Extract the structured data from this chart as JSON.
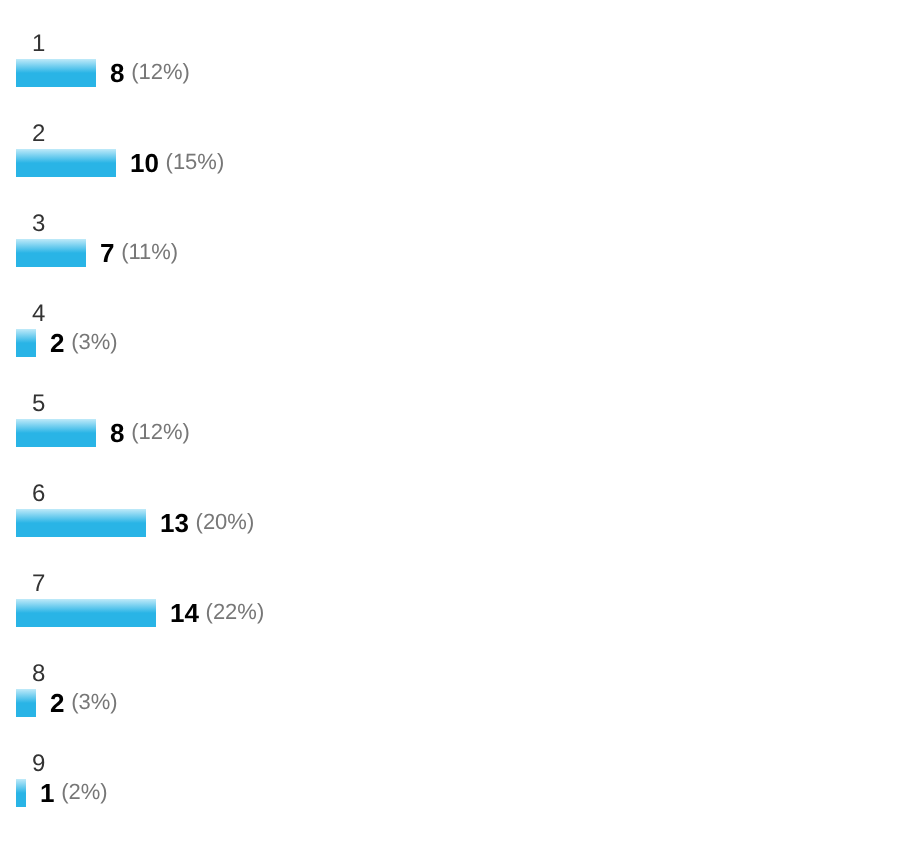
{
  "chart_data": {
    "type": "bar",
    "orientation": "horizontal",
    "categories": [
      "1",
      "2",
      "3",
      "4",
      "5",
      "6",
      "7",
      "8",
      "9"
    ],
    "values": [
      8,
      10,
      7,
      2,
      8,
      13,
      14,
      2,
      1
    ],
    "value_labels": [
      "8 (12%)",
      "10 (15%)",
      "7 (11%)",
      "2 (3%)",
      "8 (12%)",
      "13 (20%)",
      "14 (22%)",
      "2 (3%)",
      "1 (2%)"
    ],
    "color": "#29b4e6",
    "grid": false
  }
}
